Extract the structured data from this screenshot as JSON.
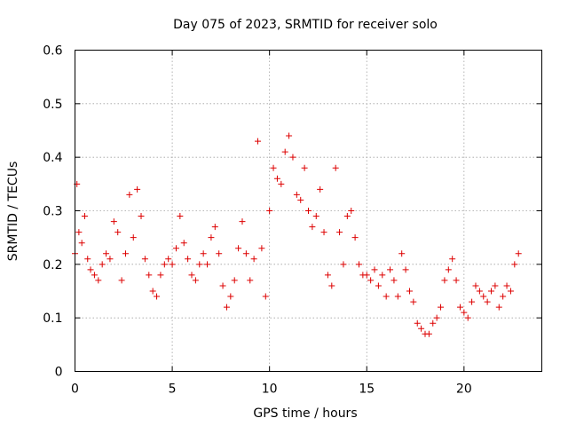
{
  "chart_data": {
    "type": "scatter",
    "title": "Day 075 of 2023, SRMTID for receiver solo",
    "xlabel": "GPS time / hours",
    "ylabel": "SRMTID / TECUs",
    "xlim": [
      0,
      24
    ],
    "ylim": [
      0,
      0.6
    ],
    "x_ticks": [
      0,
      5,
      10,
      15,
      20
    ],
    "x_tick_labels": [
      "0",
      "5",
      "10",
      "15",
      "20"
    ],
    "y_ticks": [
      0,
      0.1,
      0.2,
      0.3,
      0.4,
      0.5,
      0.6
    ],
    "y_tick_labels": [
      "0",
      "0.1",
      "0.2",
      "0.3",
      "0.4",
      "0.5",
      "0.6"
    ],
    "grid": true,
    "marker": "plus",
    "color": "#dd0000",
    "series": [
      {
        "name": "SRMTID",
        "x": [
          0.0,
          0.1,
          0.2,
          0.35,
          0.5,
          0.65,
          0.8,
          1.0,
          1.2,
          1.4,
          1.6,
          1.8,
          2.0,
          2.2,
          2.4,
          2.6,
          2.8,
          3.0,
          3.2,
          3.4,
          3.6,
          3.8,
          4.0,
          4.2,
          4.4,
          4.6,
          4.8,
          5.0,
          5.2,
          5.4,
          5.6,
          5.8,
          6.0,
          6.2,
          6.4,
          6.6,
          6.8,
          7.0,
          7.2,
          7.4,
          7.6,
          7.8,
          8.0,
          8.2,
          8.4,
          8.6,
          8.8,
          9.0,
          9.2,
          9.4,
          9.6,
          9.8,
          10.0,
          10.2,
          10.4,
          10.6,
          10.8,
          11.0,
          11.2,
          11.4,
          11.6,
          11.8,
          12.0,
          12.2,
          12.4,
          12.6,
          12.8,
          13.0,
          13.2,
          13.4,
          13.6,
          13.8,
          14.0,
          14.2,
          14.4,
          14.6,
          14.8,
          15.0,
          15.2,
          15.4,
          15.6,
          15.8,
          16.0,
          16.2,
          16.4,
          16.6,
          16.8,
          17.0,
          17.2,
          17.4,
          17.6,
          17.8,
          18.0,
          18.2,
          18.4,
          18.6,
          18.8,
          19.0,
          19.2,
          19.4,
          19.6,
          19.8,
          20.0,
          20.2,
          20.4,
          20.6,
          20.8,
          21.0,
          21.2,
          21.4,
          21.6,
          21.8,
          22.0,
          22.2,
          22.4,
          22.6,
          22.8
        ],
        "y": [
          0.22,
          0.35,
          0.26,
          0.24,
          0.29,
          0.21,
          0.19,
          0.18,
          0.17,
          0.2,
          0.22,
          0.21,
          0.28,
          0.26,
          0.17,
          0.22,
          0.33,
          0.25,
          0.34,
          0.29,
          0.21,
          0.18,
          0.15,
          0.14,
          0.18,
          0.2,
          0.21,
          0.2,
          0.23,
          0.29,
          0.24,
          0.21,
          0.18,
          0.17,
          0.2,
          0.22,
          0.2,
          0.25,
          0.27,
          0.22,
          0.16,
          0.12,
          0.14,
          0.17,
          0.23,
          0.28,
          0.22,
          0.17,
          0.21,
          0.43,
          0.23,
          0.14,
          0.3,
          0.38,
          0.36,
          0.35,
          0.41,
          0.44,
          0.4,
          0.33,
          0.32,
          0.38,
          0.3,
          0.27,
          0.29,
          0.34,
          0.26,
          0.18,
          0.16,
          0.38,
          0.26,
          0.2,
          0.29,
          0.3,
          0.25,
          0.2,
          0.18,
          0.18,
          0.17,
          0.19,
          0.16,
          0.18,
          0.14,
          0.19,
          0.17,
          0.14,
          0.22,
          0.19,
          0.15,
          0.13,
          0.09,
          0.08,
          0.07,
          0.07,
          0.09,
          0.1,
          0.12,
          0.17,
          0.19,
          0.21,
          0.17,
          0.12,
          0.11,
          0.1,
          0.13,
          0.16,
          0.15,
          0.14,
          0.13,
          0.15,
          0.16,
          0.12,
          0.14,
          0.16,
          0.15,
          0.2,
          0.22
        ]
      }
    ]
  }
}
